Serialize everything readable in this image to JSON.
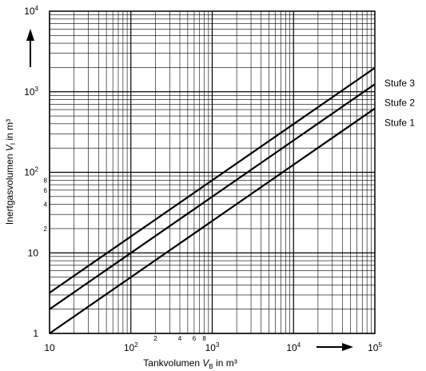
{
  "chart_data": {
    "type": "line",
    "x_scale": "log",
    "y_scale": "log",
    "xlim": [
      10,
      100000
    ],
    "ylim": [
      1,
      10000
    ],
    "grid": true,
    "xlabel": {
      "base": "Tankvolumen ",
      "var": "V",
      "sub": "B",
      "unit": " in m³"
    },
    "ylabel": {
      "base": "Inertgasvolumen ",
      "var": "V",
      "sub": "I",
      "unit": " in m³"
    },
    "x_major_ticks": [
      {
        "value": 10,
        "label": "10"
      },
      {
        "value": 100,
        "label": "10",
        "sup": "2"
      },
      {
        "value": 1000,
        "label": "10",
        "sup": "3"
      },
      {
        "value": 10000,
        "label": "10",
        "sup": "4"
      },
      {
        "value": 100000,
        "label": "10",
        "sup": "5"
      }
    ],
    "x_minor_labels": [
      {
        "value": 200,
        "label": "2"
      },
      {
        "value": 400,
        "label": "4"
      },
      {
        "value": 600,
        "label": "6"
      },
      {
        "value": 800,
        "label": "8"
      }
    ],
    "y_major_ticks": [
      {
        "value": 1,
        "label": "1"
      },
      {
        "value": 10,
        "label": "10"
      },
      {
        "value": 100,
        "label": "10",
        "sup": "2"
      },
      {
        "value": 1000,
        "label": "10",
        "sup": "3"
      },
      {
        "value": 10000,
        "label": "10",
        "sup": "4"
      }
    ],
    "y_minor_labels": [
      {
        "value": 20,
        "label": "2"
      },
      {
        "value": 40,
        "label": "4"
      },
      {
        "value": 60,
        "label": "6"
      },
      {
        "value": 80,
        "label": "8"
      }
    ],
    "series": [
      {
        "name": "Stufe 1",
        "x": [
          10,
          100000
        ],
        "y": [
          1,
          620
        ]
      },
      {
        "name": "Stufe 2",
        "x": [
          10,
          100000
        ],
        "y": [
          2,
          1240
        ]
      },
      {
        "name": "Stufe 3",
        "x": [
          10,
          100000
        ],
        "y": [
          3.2,
          1980
        ]
      }
    ],
    "arrows": [
      "x-direction",
      "y-direction"
    ]
  }
}
